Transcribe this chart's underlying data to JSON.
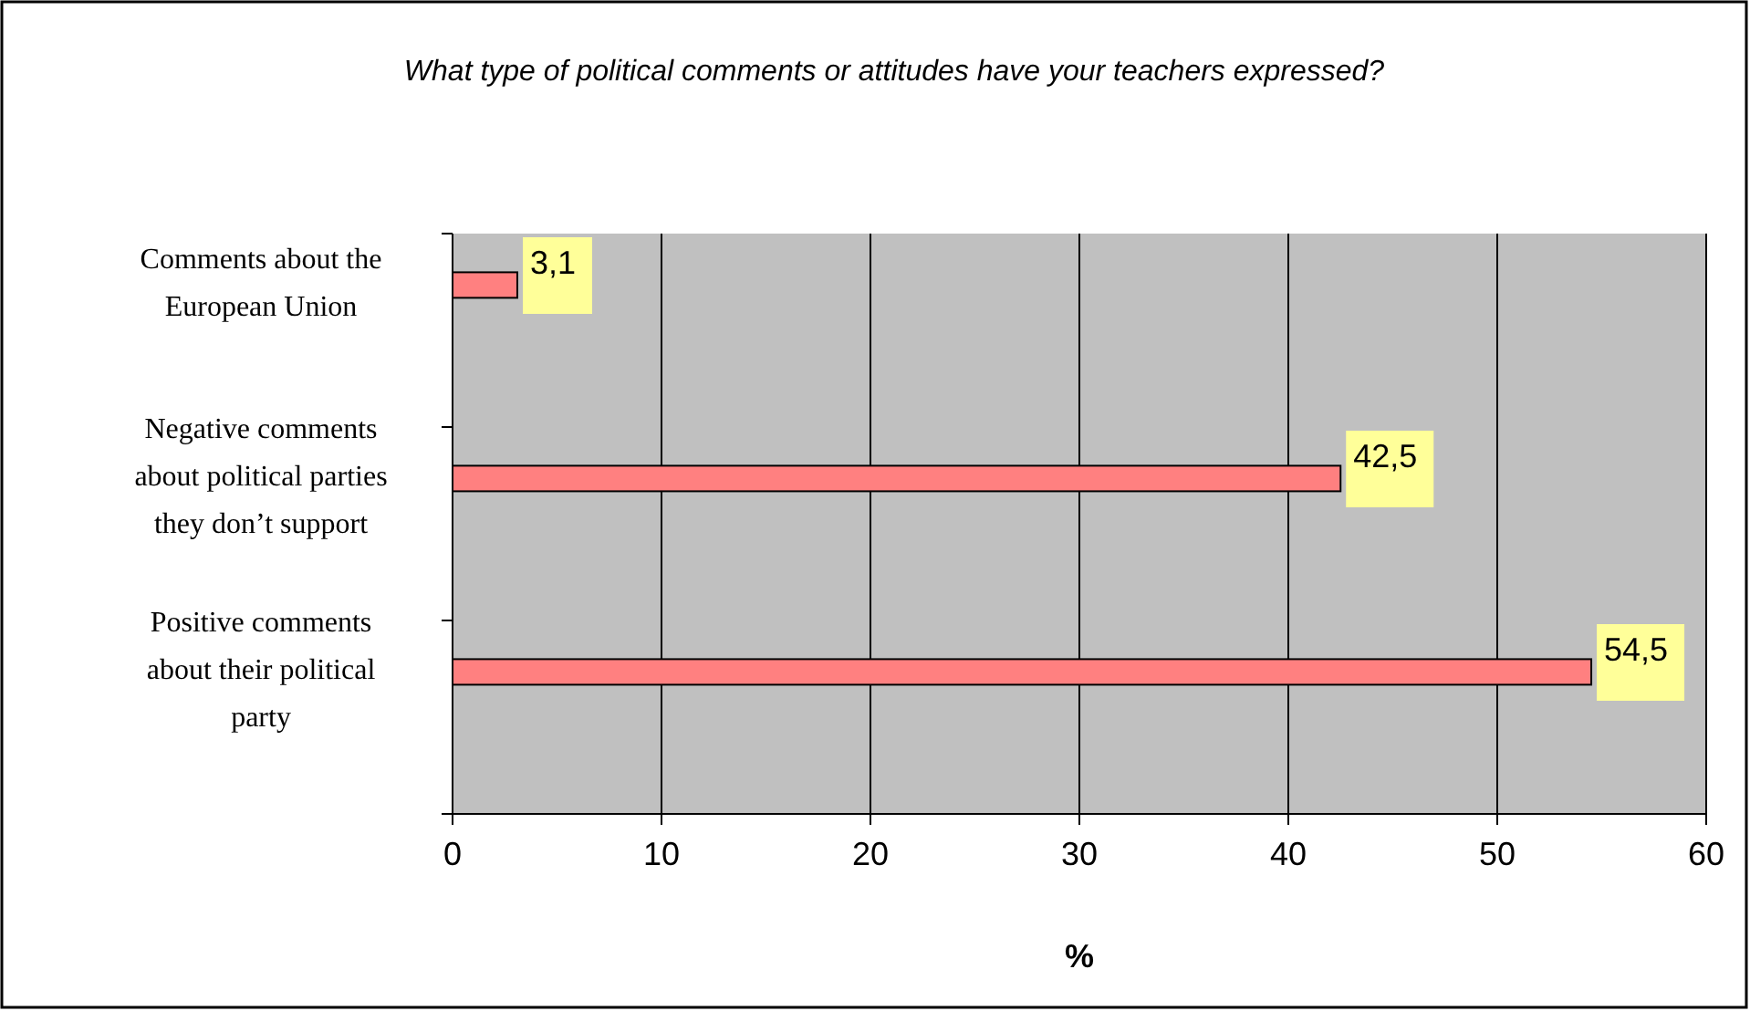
{
  "chart_data": {
    "type": "bar",
    "orientation": "horizontal",
    "title": "What type of political comments or attitudes have your teachers expressed?",
    "xlabel": "%",
    "categories": [
      "Comments about the European Union",
      "Negative comments about political parties they don’t support",
      "Positive comments about their political party"
    ],
    "values": [
      3.1,
      42.5,
      54.5
    ],
    "value_labels": [
      "3,1",
      "42,5",
      "54,5"
    ],
    "color": "#ff8080",
    "xlim": [
      0,
      60
    ],
    "xticks": [
      0,
      10,
      20,
      30,
      40,
      50,
      60
    ],
    "grid": "x"
  }
}
